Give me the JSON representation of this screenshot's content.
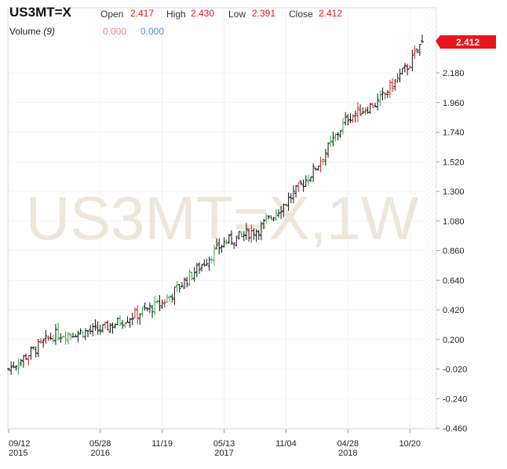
{
  "header": {
    "symbol": "US3MT=X",
    "open_label": "Open",
    "open_value": "2.417",
    "high_label": "High",
    "high_value": "2.430",
    "low_label": "Low",
    "low_value": "2.391",
    "close_label": "Close",
    "close_value": "2.412",
    "volume_label": "Volume",
    "volume_period": "(9)",
    "volume_value_1": "0.000",
    "volume_value_2": "0.000"
  },
  "watermark": "US3MT=X,1W",
  "last_price_badge": "2.412",
  "colors": {
    "up": "#2aa84a",
    "down": "#e8161b",
    "neutral": "#111111",
    "badge": "#e8161b",
    "vol1": "#f08080",
    "vol2": "#4a8fe0"
  },
  "chart_data": {
    "type": "ohlc",
    "interval": "1W",
    "y_ticks": [
      "2.180",
      "1.960",
      "1.740",
      "1.520",
      "1.300",
      "1.080",
      "0.860",
      "0.640",
      "0.420",
      "0.200",
      "-0.020",
      "-0.240",
      "-0.460"
    ],
    "ylim": [
      -0.5,
      2.46
    ],
    "x_ticks": [
      {
        "label": "09/12",
        "year": "2015",
        "date": "2015-09-12"
      },
      {
        "label": "05/28",
        "year": "2016",
        "date": "2016-05-28"
      },
      {
        "label": "11/19",
        "year": "",
        "date": "2016-11-19"
      },
      {
        "label": "05/13",
        "year": "2017",
        "date": "2017-05-13"
      },
      {
        "label": "11/04",
        "year": "",
        "date": "2017-11-04"
      },
      {
        "label": "04/28",
        "year": "2018",
        "date": "2018-04-28"
      },
      {
        "label": "10/20",
        "year": "",
        "date": "2018-10-20"
      }
    ],
    "x_range": [
      "2015-09-12",
      "2018-11-24"
    ],
    "key_points": [
      {
        "date": "2015-09-12",
        "close": -0.02
      },
      {
        "date": "2016-01-16",
        "close": 0.23
      },
      {
        "date": "2016-05-28",
        "close": 0.27
      },
      {
        "date": "2016-11-19",
        "close": 0.47
      },
      {
        "date": "2017-02-25",
        "close": 0.72
      },
      {
        "date": "2017-05-13",
        "close": 0.92
      },
      {
        "date": "2017-08-19",
        "close": 1.02
      },
      {
        "date": "2017-11-04",
        "close": 1.22
      },
      {
        "date": "2018-01-20",
        "close": 1.45
      },
      {
        "date": "2018-04-28",
        "close": 1.85
      },
      {
        "date": "2018-07-21",
        "close": 1.96
      },
      {
        "date": "2018-10-20",
        "close": 2.25
      },
      {
        "date": "2018-11-24",
        "close": 2.412
      }
    ],
    "last": {
      "open": 2.417,
      "high": 2.43,
      "low": 2.391,
      "close": 2.412
    }
  }
}
